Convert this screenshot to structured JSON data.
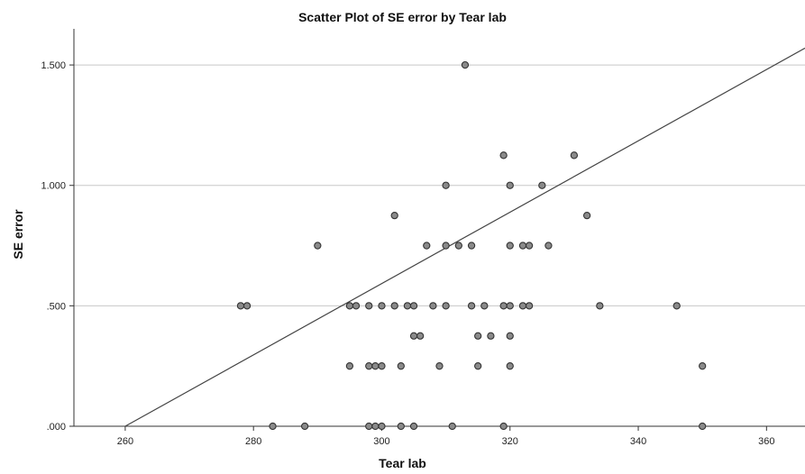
{
  "chart_data": {
    "type": "scatter",
    "title": "Scatter Plot of SE error by Tear lab",
    "xlabel": "Tear lab",
    "ylabel": "SE error",
    "xlim": [
      252,
      366
    ],
    "ylim": [
      0,
      1.65
    ],
    "x_ticks": [
      260,
      280,
      300,
      320,
      340,
      360
    ],
    "x_tick_labels": [
      "260",
      "280",
      "300",
      "320",
      "340",
      "360"
    ],
    "y_ticks": [
      0,
      0.5,
      1.0,
      1.5
    ],
    "y_tick_labels": [
      ".000",
      ".500",
      "1.000",
      "1.500"
    ],
    "grid": "horizontal",
    "legend": "none",
    "point_color": "#8a8a8a",
    "fit_line": {
      "x": [
        260,
        366
      ],
      "y": [
        0,
        1.57
      ]
    },
    "points": [
      [
        313,
        1.5
      ],
      [
        319,
        1.125
      ],
      [
        330,
        1.125
      ],
      [
        310,
        1.0
      ],
      [
        320,
        1.0
      ],
      [
        325,
        1.0
      ],
      [
        302,
        0.875
      ],
      [
        332,
        0.875
      ],
      [
        290,
        0.75
      ],
      [
        307,
        0.75
      ],
      [
        310,
        0.75
      ],
      [
        312,
        0.75
      ],
      [
        314,
        0.75
      ],
      [
        320,
        0.75
      ],
      [
        322,
        0.75
      ],
      [
        323,
        0.75
      ],
      [
        326,
        0.75
      ],
      [
        278,
        0.5
      ],
      [
        279,
        0.5
      ],
      [
        295,
        0.5
      ],
      [
        296,
        0.5
      ],
      [
        298,
        0.5
      ],
      [
        300,
        0.5
      ],
      [
        302,
        0.5
      ],
      [
        304,
        0.5
      ],
      [
        305,
        0.5
      ],
      [
        308,
        0.5
      ],
      [
        310,
        0.5
      ],
      [
        314,
        0.5
      ],
      [
        316,
        0.5
      ],
      [
        319,
        0.5
      ],
      [
        320,
        0.5
      ],
      [
        322,
        0.5
      ],
      [
        323,
        0.5
      ],
      [
        334,
        0.5
      ],
      [
        346,
        0.5
      ],
      [
        305,
        0.375
      ],
      [
        306,
        0.375
      ],
      [
        315,
        0.375
      ],
      [
        317,
        0.375
      ],
      [
        320,
        0.375
      ],
      [
        295,
        0.25
      ],
      [
        298,
        0.25
      ],
      [
        299,
        0.25
      ],
      [
        300,
        0.25
      ],
      [
        303,
        0.25
      ],
      [
        309,
        0.25
      ],
      [
        315,
        0.25
      ],
      [
        320,
        0.25
      ],
      [
        350,
        0.25
      ],
      [
        283,
        0.0
      ],
      [
        288,
        0.0
      ],
      [
        298,
        0.0
      ],
      [
        299,
        0.0
      ],
      [
        300,
        0.0
      ],
      [
        303,
        0.0
      ],
      [
        305,
        0.0
      ],
      [
        311,
        0.0
      ],
      [
        319,
        0.0
      ],
      [
        350,
        0.0
      ]
    ]
  }
}
